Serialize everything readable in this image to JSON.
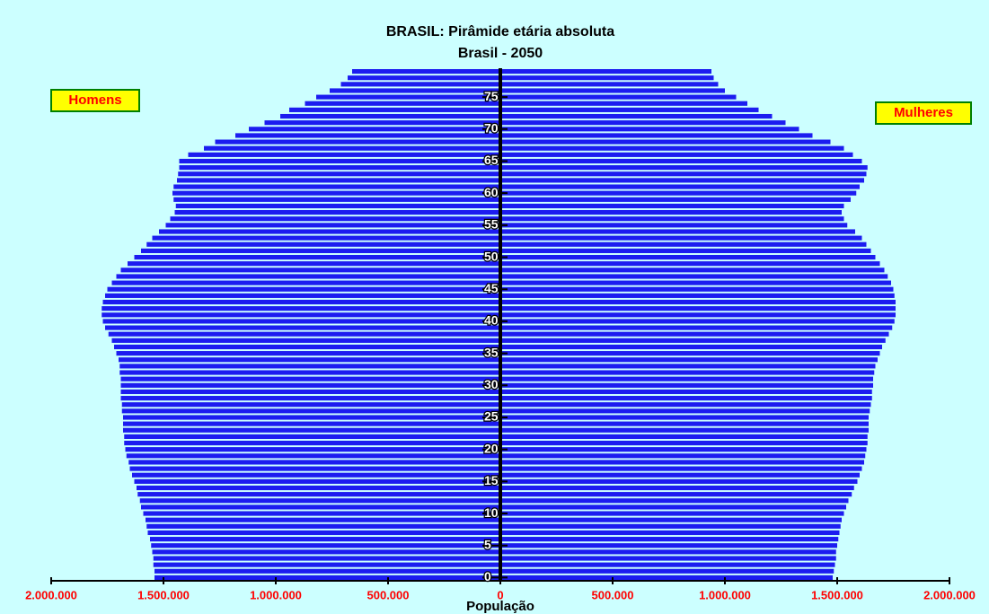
{
  "chart_data": {
    "type": "pyramid",
    "title": "BRASIL: Pirâmide etária absoluta",
    "subtitle": "Brasil - 2050",
    "x_label": "População",
    "y": [
      0,
      1,
      2,
      3,
      4,
      5,
      6,
      7,
      8,
      9,
      10,
      11,
      12,
      13,
      14,
      15,
      16,
      17,
      18,
      19,
      20,
      21,
      22,
      23,
      24,
      25,
      26,
      27,
      28,
      29,
      30,
      31,
      32,
      33,
      34,
      35,
      36,
      37,
      38,
      39,
      40,
      41,
      42,
      43,
      44,
      45,
      46,
      47,
      48,
      49,
      50,
      51,
      52,
      53,
      54,
      55,
      56,
      57,
      58,
      59,
      60,
      61,
      62,
      63,
      64,
      65,
      66,
      67,
      68,
      69,
      70,
      71,
      72,
      73,
      74,
      75,
      76,
      77,
      78,
      79
    ],
    "series": [
      {
        "name": "Homens",
        "side": "left",
        "color": "#1c1cf0",
        "values": [
          1540000,
          1540000,
          1545000,
          1545000,
          1550000,
          1555000,
          1560000,
          1570000,
          1575000,
          1580000,
          1590000,
          1600000,
          1605000,
          1615000,
          1620000,
          1630000,
          1640000,
          1650000,
          1655000,
          1665000,
          1670000,
          1675000,
          1675000,
          1680000,
          1680000,
          1680000,
          1685000,
          1685000,
          1690000,
          1690000,
          1690000,
          1690000,
          1695000,
          1695000,
          1700000,
          1710000,
          1720000,
          1730000,
          1745000,
          1760000,
          1770000,
          1775000,
          1775000,
          1770000,
          1760000,
          1750000,
          1730000,
          1710000,
          1690000,
          1660000,
          1630000,
          1600000,
          1575000,
          1550000,
          1520000,
          1490000,
          1470000,
          1450000,
          1445000,
          1455000,
          1460000,
          1455000,
          1440000,
          1435000,
          1430000,
          1430000,
          1390000,
          1320000,
          1270000,
          1180000,
          1120000,
          1050000,
          980000,
          940000,
          870000,
          820000,
          760000,
          710000,
          680000,
          660000
        ]
      },
      {
        "name": "Mulheres",
        "side": "right",
        "color": "#1c1cf0",
        "values": [
          1480000,
          1485000,
          1490000,
          1495000,
          1495000,
          1500000,
          1505000,
          1510000,
          1515000,
          1520000,
          1530000,
          1540000,
          1550000,
          1565000,
          1575000,
          1590000,
          1600000,
          1610000,
          1620000,
          1625000,
          1630000,
          1635000,
          1635000,
          1640000,
          1640000,
          1640000,
          1645000,
          1650000,
          1655000,
          1655000,
          1660000,
          1660000,
          1665000,
          1670000,
          1680000,
          1690000,
          1700000,
          1715000,
          1730000,
          1745000,
          1755000,
          1760000,
          1760000,
          1760000,
          1755000,
          1750000,
          1740000,
          1725000,
          1710000,
          1690000,
          1670000,
          1650000,
          1630000,
          1610000,
          1580000,
          1545000,
          1530000,
          1520000,
          1530000,
          1560000,
          1585000,
          1600000,
          1620000,
          1630000,
          1635000,
          1610000,
          1570000,
          1530000,
          1470000,
          1390000,
          1330000,
          1270000,
          1210000,
          1150000,
          1100000,
          1050000,
          1000000,
          970000,
          950000,
          940000
        ]
      }
    ],
    "xlim": [
      -2000000,
      2000000
    ],
    "xticks": [
      {
        "value": -2000000,
        "label": "2.000.000"
      },
      {
        "value": -1500000,
        "label": "1.500.000"
      },
      {
        "value": -1000000,
        "label": "1.000.000"
      },
      {
        "value": -500000,
        "label": "500.000"
      },
      0,
      {
        "value": 500000,
        "label": "500.000"
      },
      {
        "value": 1000000,
        "label": "1.000.000"
      },
      {
        "value": 1500000,
        "label": "1.500.000"
      },
      {
        "value": 2000000,
        "label": "2.000.000"
      }
    ],
    "ylim": [
      -0.5,
      79.5
    ],
    "yticks": [
      0,
      5,
      10,
      15,
      20,
      25,
      30,
      35,
      40,
      45,
      50,
      55,
      60,
      65,
      70,
      75
    ]
  }
}
